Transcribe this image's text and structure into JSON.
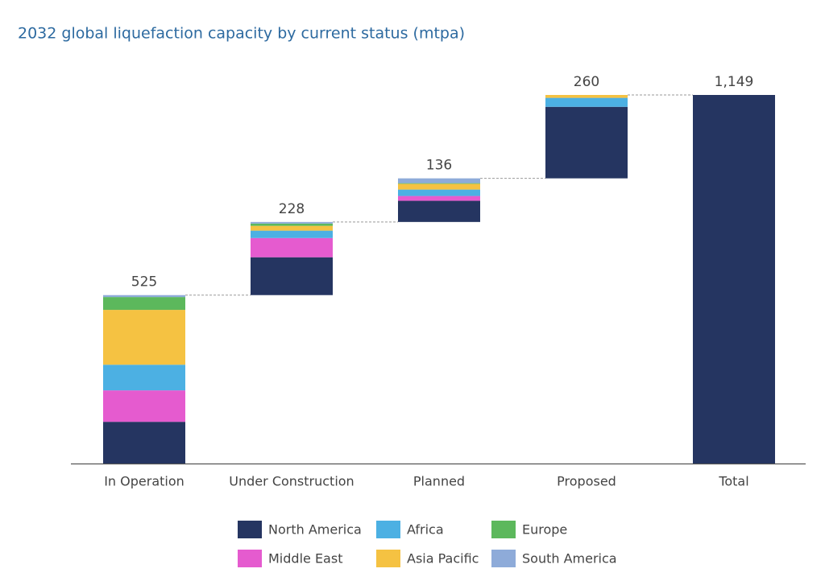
{
  "chart_data": {
    "type": "waterfall",
    "title": "2032 global liquefaction capacity by current status (mtpa)",
    "categories": [
      "In Operation",
      "Under Construction",
      "Planned",
      "Proposed",
      "Total"
    ],
    "series": [
      {
        "name": "North America",
        "color": "#253561",
        "values": [
          130,
          118,
          66,
          223,
          null
        ]
      },
      {
        "name": "Middle East",
        "color": "#e55bcf",
        "values": [
          98,
          60,
          15,
          0,
          null
        ]
      },
      {
        "name": "Africa",
        "color": "#4cb0e3",
        "values": [
          80,
          23,
          20,
          28,
          null
        ]
      },
      {
        "name": "Asia Pacific",
        "color": "#f5c242",
        "values": [
          171,
          15,
          18,
          9,
          null
        ]
      },
      {
        "name": "Europe",
        "color": "#5cb85c",
        "values": [
          40,
          7,
          2,
          0,
          null
        ]
      },
      {
        "name": "South America",
        "color": "#8eabd9",
        "values": [
          6,
          5,
          15,
          0,
          null
        ]
      }
    ],
    "totals": {
      "values": [
        525,
        228,
        136,
        260,
        1149
      ],
      "value_labels": [
        "525",
        "228",
        "136",
        "260",
        "1,149"
      ],
      "color": "#253561"
    }
  }
}
